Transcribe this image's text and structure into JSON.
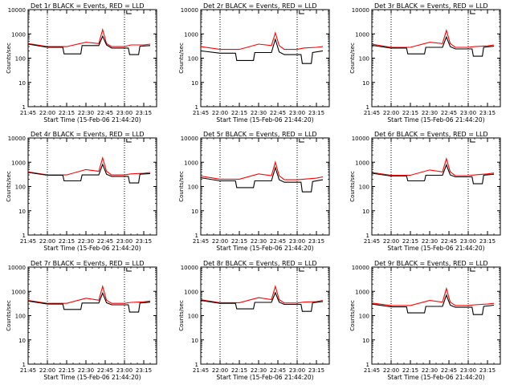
{
  "chart_data": [
    {
      "type": "line",
      "title": "Det 1r BLACK = Events, RED = LLD",
      "xlabel": "Start Time (15-Feb-06 21:44:20)",
      "ylabel": "Counts/sec",
      "x_ticks": [
        "21:45",
        "22:00",
        "22:15",
        "22:30",
        "22:45",
        "23:00",
        "23:15"
      ],
      "y_ticks": [
        "1",
        "10",
        "100",
        "1000",
        "10000"
      ],
      "ylog": true,
      "ylim": [
        1,
        10000
      ],
      "series": [
        {
          "color": "#ff0000",
          "x": [
            "21:45",
            "22:00",
            "22:15",
            "22:30",
            "22:40",
            "22:43",
            "22:46",
            "22:50",
            "23:00",
            "23:05",
            "23:15",
            "23:20"
          ],
          "y": [
            400,
            300,
            300,
            450,
            400,
            1500,
            400,
            300,
            300,
            350,
            350,
            380
          ]
        },
        {
          "color": "#000000",
          "x": [
            "21:45",
            "22:00",
            "22:12",
            "22:13",
            "22:26",
            "22:27",
            "22:40",
            "22:43",
            "22:46",
            "22:50",
            "23:00",
            "23:03",
            "23:04",
            "23:11",
            "23:12",
            "23:20"
          ],
          "y": [
            380,
            280,
            280,
            150,
            150,
            330,
            330,
            800,
            350,
            260,
            260,
            260,
            140,
            140,
            310,
            330
          ]
        }
      ]
    },
    {
      "type": "line",
      "title": "Det 2r BLACK = Events, RED = LLD",
      "xlabel": "Start Time (15-Feb-06 21:44:20)",
      "ylabel": "Counts/sec",
      "x_ticks": [
        "21:45",
        "22:00",
        "22:15",
        "22:30",
        "22:45",
        "23:00",
        "23:15"
      ],
      "y_ticks": [
        "1",
        "10",
        "100",
        "1000",
        "10000"
      ],
      "ylog": true,
      "ylim": [
        1,
        10000
      ],
      "series": [
        {
          "color": "#ff0000",
          "x": [
            "21:45",
            "22:00",
            "22:15",
            "22:30",
            "22:40",
            "22:43",
            "22:46",
            "22:50",
            "23:00",
            "23:05",
            "23:15",
            "23:20"
          ],
          "y": [
            300,
            230,
            230,
            380,
            330,
            1100,
            330,
            230,
            230,
            260,
            280,
            300
          ]
        },
        {
          "color": "#000000",
          "x": [
            "21:45",
            "22:00",
            "22:12",
            "22:13",
            "22:26",
            "22:27",
            "22:40",
            "22:43",
            "22:46",
            "22:50",
            "23:00",
            "23:03",
            "23:04",
            "23:11",
            "23:12",
            "23:20"
          ],
          "y": [
            200,
            160,
            160,
            80,
            80,
            170,
            170,
            600,
            180,
            140,
            140,
            140,
            60,
            60,
            170,
            200
          ]
        }
      ]
    },
    {
      "type": "line",
      "title": "Det 3r BLACK = Events, RED = LLD",
      "xlabel": "Start Time (15-Feb-06 21:44:20)",
      "ylabel": "Counts/sec",
      "x_ticks": [
        "21:45",
        "22:00",
        "22:15",
        "22:30",
        "22:45",
        "23:00",
        "23:15"
      ],
      "y_ticks": [
        "1",
        "10",
        "100",
        "1000",
        "10000"
      ],
      "ylog": true,
      "ylim": [
        1,
        10000
      ],
      "series": [
        {
          "color": "#ff0000",
          "x": [
            "21:45",
            "22:00",
            "22:15",
            "22:30",
            "22:40",
            "22:43",
            "22:46",
            "22:50",
            "23:00",
            "23:05",
            "23:15",
            "23:20"
          ],
          "y": [
            380,
            280,
            280,
            450,
            400,
            1400,
            400,
            280,
            280,
            300,
            320,
            350
          ]
        },
        {
          "color": "#000000",
          "x": [
            "21:45",
            "22:00",
            "22:12",
            "22:13",
            "22:26",
            "22:27",
            "22:40",
            "22:43",
            "22:46",
            "22:50",
            "23:00",
            "23:03",
            "23:04",
            "23:11",
            "23:12",
            "23:20"
          ],
          "y": [
            340,
            260,
            260,
            150,
            150,
            280,
            280,
            750,
            300,
            240,
            240,
            240,
            120,
            120,
            280,
            310
          ]
        }
      ]
    },
    {
      "type": "line",
      "title": "Det 4r BLACK = Events, RED = LLD",
      "xlabel": "Start Time (15-Feb-06 21:44:20)",
      "ylabel": "Counts/sec",
      "x_ticks": [
        "21:45",
        "22:00",
        "22:15",
        "22:30",
        "22:45",
        "23:00",
        "23:15"
      ],
      "y_ticks": [
        "1",
        "10",
        "100",
        "1000",
        "10000"
      ],
      "ylog": true,
      "ylim": [
        1,
        10000
      ],
      "series": [
        {
          "color": "#ff0000",
          "x": [
            "21:45",
            "22:00",
            "22:15",
            "22:30",
            "22:40",
            "22:43",
            "22:46",
            "22:50",
            "23:00",
            "23:05",
            "23:15",
            "23:20"
          ],
          "y": [
            400,
            300,
            300,
            500,
            420,
            1500,
            420,
            300,
            300,
            330,
            350,
            380
          ]
        },
        {
          "color": "#000000",
          "x": [
            "21:45",
            "22:00",
            "22:12",
            "22:13",
            "22:26",
            "22:27",
            "22:40",
            "22:43",
            "22:46",
            "22:50",
            "23:00",
            "23:03",
            "23:04",
            "23:11",
            "23:12",
            "23:20"
          ],
          "y": [
            380,
            290,
            290,
            170,
            170,
            300,
            300,
            820,
            320,
            260,
            260,
            260,
            140,
            140,
            320,
            340
          ]
        }
      ]
    },
    {
      "type": "line",
      "title": "Det 5r BLACK = Events, RED = LLD",
      "xlabel": "Start Time (15-Feb-06 21:44:20)",
      "ylabel": "Counts/sec",
      "x_ticks": [
        "21:45",
        "22:00",
        "22:15",
        "22:30",
        "22:45",
        "23:00",
        "23:15"
      ],
      "y_ticks": [
        "1",
        "10",
        "100",
        "1000",
        "10000"
      ],
      "ylog": true,
      "ylim": [
        1,
        10000
      ],
      "series": [
        {
          "color": "#ff0000",
          "x": [
            "21:45",
            "22:00",
            "22:15",
            "22:30",
            "22:40",
            "22:43",
            "22:46",
            "22:50",
            "23:00",
            "23:05",
            "23:15",
            "23:20"
          ],
          "y": [
            270,
            200,
            200,
            330,
            280,
            1000,
            280,
            190,
            190,
            200,
            220,
            250
          ]
        },
        {
          "color": "#000000",
          "x": [
            "21:45",
            "22:00",
            "22:12",
            "22:13",
            "22:26",
            "22:27",
            "22:40",
            "22:43",
            "22:46",
            "22:50",
            "23:00",
            "23:03",
            "23:04",
            "23:11",
            "23:12",
            "23:20"
          ],
          "y": [
            230,
            170,
            170,
            90,
            90,
            170,
            170,
            600,
            190,
            150,
            150,
            150,
            60,
            60,
            160,
            190
          ]
        }
      ]
    },
    {
      "type": "line",
      "title": "Det 6r BLACK = Events, RED = LLD",
      "xlabel": "Start Time (15-Feb-06 21:44:20)",
      "ylabel": "Counts/sec",
      "x_ticks": [
        "21:45",
        "22:00",
        "22:15",
        "22:30",
        "22:45",
        "23:00",
        "23:15"
      ],
      "y_ticks": [
        "1",
        "10",
        "100",
        "1000",
        "10000"
      ],
      "ylog": true,
      "ylim": [
        1,
        10000
      ],
      "series": [
        {
          "color": "#ff0000",
          "x": [
            "21:45",
            "22:00",
            "22:15",
            "22:30",
            "22:40",
            "22:43",
            "22:46",
            "22:50",
            "23:00",
            "23:05",
            "23:15",
            "23:20"
          ],
          "y": [
            380,
            290,
            290,
            480,
            400,
            1400,
            400,
            280,
            280,
            300,
            330,
            360
          ]
        },
        {
          "color": "#000000",
          "x": [
            "21:45",
            "22:00",
            "22:12",
            "22:13",
            "22:26",
            "22:27",
            "22:40",
            "22:43",
            "22:46",
            "22:50",
            "23:00",
            "23:03",
            "23:04",
            "23:11",
            "23:12",
            "23:20"
          ],
          "y": [
            350,
            270,
            270,
            170,
            170,
            290,
            290,
            780,
            300,
            250,
            250,
            250,
            130,
            130,
            290,
            320
          ]
        }
      ]
    },
    {
      "type": "line",
      "title": "Det 7r BLACK = Events, RED = LLD",
      "xlabel": "Start Time (15-Feb-06 21:44:20)",
      "ylabel": "Counts/sec",
      "x_ticks": [
        "21:45",
        "22:00",
        "22:15",
        "22:30",
        "22:45",
        "23:00",
        "23:15"
      ],
      "y_ticks": [
        "1",
        "10",
        "100",
        "1000",
        "10000"
      ],
      "ylog": true,
      "ylim": [
        1,
        10000
      ],
      "series": [
        {
          "color": "#ff0000",
          "x": [
            "21:45",
            "22:00",
            "22:15",
            "22:30",
            "22:40",
            "22:43",
            "22:46",
            "22:50",
            "23:00",
            "23:05",
            "23:15",
            "23:20"
          ],
          "y": [
            420,
            320,
            320,
            520,
            430,
            1600,
            430,
            320,
            320,
            350,
            370,
            400
          ]
        },
        {
          "color": "#000000",
          "x": [
            "21:45",
            "22:00",
            "22:12",
            "22:13",
            "22:26",
            "22:27",
            "22:40",
            "22:43",
            "22:46",
            "22:50",
            "23:00",
            "23:03",
            "23:04",
            "23:11",
            "23:12",
            "23:20"
          ],
          "y": [
            400,
            300,
            300,
            180,
            180,
            330,
            330,
            850,
            340,
            280,
            280,
            280,
            140,
            140,
            330,
            360
          ]
        }
      ]
    },
    {
      "type": "line",
      "title": "Det 8r BLACK = Events, RED = LLD",
      "xlabel": "Start Time (15-Feb-06 21:44:20)",
      "ylabel": "Counts/sec",
      "x_ticks": [
        "21:45",
        "22:00",
        "22:15",
        "22:30",
        "22:45",
        "23:00",
        "23:15"
      ],
      "y_ticks": [
        "1",
        "10",
        "100",
        "1000",
        "10000"
      ],
      "ylog": true,
      "ylim": [
        1,
        10000
      ],
      "series": [
        {
          "color": "#ff0000",
          "x": [
            "21:45",
            "22:00",
            "22:15",
            "22:30",
            "22:40",
            "22:43",
            "22:46",
            "22:50",
            "23:00",
            "23:05",
            "23:15",
            "23:20"
          ],
          "y": [
            450,
            340,
            340,
            550,
            460,
            1600,
            460,
            330,
            330,
            360,
            380,
            420
          ]
        },
        {
          "color": "#000000",
          "x": [
            "21:45",
            "22:00",
            "22:12",
            "22:13",
            "22:26",
            "22:27",
            "22:40",
            "22:43",
            "22:46",
            "22:50",
            "23:00",
            "23:03",
            "23:04",
            "23:11",
            "23:12",
            "23:20"
          ],
          "y": [
            420,
            320,
            320,
            190,
            190,
            350,
            350,
            880,
            360,
            290,
            290,
            290,
            150,
            150,
            340,
            380
          ]
        }
      ]
    },
    {
      "type": "line",
      "title": "Det 9r BLACK = Events, RED = LLD",
      "xlabel": "Start Time (15-Feb-06 21:44:20)",
      "ylabel": "Counts/sec",
      "x_ticks": [
        "21:45",
        "22:00",
        "22:15",
        "22:30",
        "22:45",
        "23:00",
        "23:15"
      ],
      "y_ticks": [
        "1",
        "10",
        "100",
        "1000",
        "10000"
      ],
      "ylog": true,
      "ylim": [
        1,
        10000
      ],
      "series": [
        {
          "color": "#ff0000",
          "x": [
            "21:45",
            "22:00",
            "22:15",
            "22:30",
            "22:40",
            "22:43",
            "22:46",
            "22:50",
            "23:00",
            "23:05",
            "23:15",
            "23:20"
          ],
          "y": [
            330,
            260,
            260,
            420,
            360,
            1300,
            360,
            260,
            260,
            280,
            300,
            320
          ]
        },
        {
          "color": "#000000",
          "x": [
            "21:45",
            "22:00",
            "22:12",
            "22:13",
            "22:26",
            "22:27",
            "22:40",
            "22:43",
            "22:46",
            "22:50",
            "23:00",
            "23:03",
            "23:04",
            "23:11",
            "23:12",
            "23:20"
          ],
          "y": [
            300,
            230,
            230,
            130,
            130,
            240,
            240,
            700,
            270,
            220,
            220,
            220,
            110,
            110,
            240,
            270
          ]
        }
      ]
    }
  ]
}
